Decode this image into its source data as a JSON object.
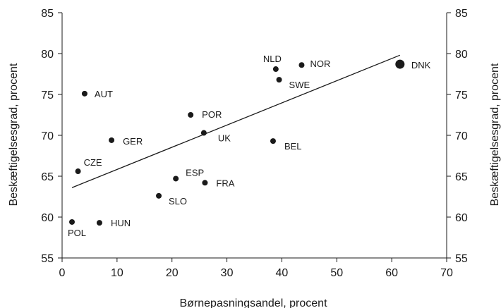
{
  "chart_data": {
    "type": "scatter",
    "xlabel": "Børnepasningsandel, procent",
    "ylabel_left": "Beskæftigelsesgrad, procent",
    "ylabel_right": "Beskæftigelsesgrad, procent",
    "xlim": [
      0,
      70
    ],
    "ylim": [
      55,
      85
    ],
    "x_ticks": [
      "0",
      "10",
      "20",
      "30",
      "40",
      "50",
      "60",
      "70"
    ],
    "y_ticks": [
      "55",
      "60",
      "65",
      "70",
      "75",
      "80",
      "85"
    ],
    "grid": false,
    "points": [
      {
        "label": "DNK",
        "x": 61.5,
        "y": 78.7,
        "highlight": true
      },
      {
        "label": "NLD",
        "x": 38.9,
        "y": 78.1
      },
      {
        "label": "NOR",
        "x": 43.6,
        "y": 78.6
      },
      {
        "label": "SWE",
        "x": 39.5,
        "y": 76.8
      },
      {
        "label": "AUT",
        "x": 4.1,
        "y": 75.1
      },
      {
        "label": "POR",
        "x": 23.4,
        "y": 72.5
      },
      {
        "label": "UK",
        "x": 25.8,
        "y": 70.3
      },
      {
        "label": "GER",
        "x": 9.0,
        "y": 69.4
      },
      {
        "label": "BEL",
        "x": 38.4,
        "y": 69.3
      },
      {
        "label": "CZE",
        "x": 2.9,
        "y": 65.6
      },
      {
        "label": "ESP",
        "x": 20.7,
        "y": 64.7
      },
      {
        "label": "FRA",
        "x": 26.0,
        "y": 64.2
      },
      {
        "label": "SLO",
        "x": 17.6,
        "y": 62.6
      },
      {
        "label": "POL",
        "x": 1.8,
        "y": 59.4
      },
      {
        "label": "HUN",
        "x": 6.8,
        "y": 59.3
      }
    ],
    "trendline": {
      "x": [
        1.8,
        61.5
      ],
      "y": [
        63.6,
        79.8
      ]
    }
  }
}
